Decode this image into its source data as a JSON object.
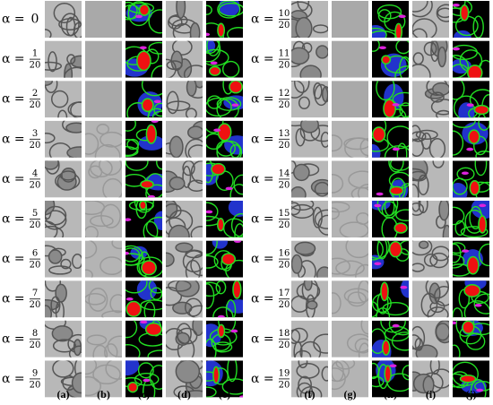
{
  "figure": {
    "left_rows": [
      {
        "prefix": "α =",
        "value": "0"
      },
      {
        "prefix": "α =",
        "numerator": "1",
        "denominator": "20"
      },
      {
        "prefix": "α =",
        "numerator": "2",
        "denominator": "20"
      },
      {
        "prefix": "α =",
        "numerator": "3",
        "denominator": "20"
      },
      {
        "prefix": "α =",
        "numerator": "4",
        "denominator": "20"
      },
      {
        "prefix": "α =",
        "numerator": "5",
        "denominator": "20"
      },
      {
        "prefix": "α =",
        "numerator": "6",
        "denominator": "20"
      },
      {
        "prefix": "α =",
        "numerator": "7",
        "denominator": "20"
      },
      {
        "prefix": "α =",
        "numerator": "8",
        "denominator": "20"
      },
      {
        "prefix": "α =",
        "numerator": "9",
        "denominator": "20"
      }
    ],
    "right_rows": [
      {
        "prefix": "α =",
        "numerator": "10",
        "denominator": "20"
      },
      {
        "prefix": "α =",
        "numerator": "11",
        "denominator": "20"
      },
      {
        "prefix": "α =",
        "numerator": "12",
        "denominator": "20"
      },
      {
        "prefix": "α =",
        "numerator": "13",
        "denominator": "20"
      },
      {
        "prefix": "α =",
        "numerator": "14",
        "denominator": "20"
      },
      {
        "prefix": "α =",
        "numerator": "15",
        "denominator": "20"
      },
      {
        "prefix": "α =",
        "numerator": "16",
        "denominator": "20"
      },
      {
        "prefix": "α =",
        "numerator": "17",
        "denominator": "20"
      },
      {
        "prefix": "α =",
        "numerator": "18",
        "denominator": "20"
      },
      {
        "prefix": "α =",
        "numerator": "19",
        "denominator": "20"
      }
    ],
    "column_labels": [
      "(a)",
      "(b)",
      "(c)",
      "(d)",
      "(e)",
      "(f)",
      "(g)",
      "(h)",
      "(i)",
      "(j)"
    ]
  }
}
